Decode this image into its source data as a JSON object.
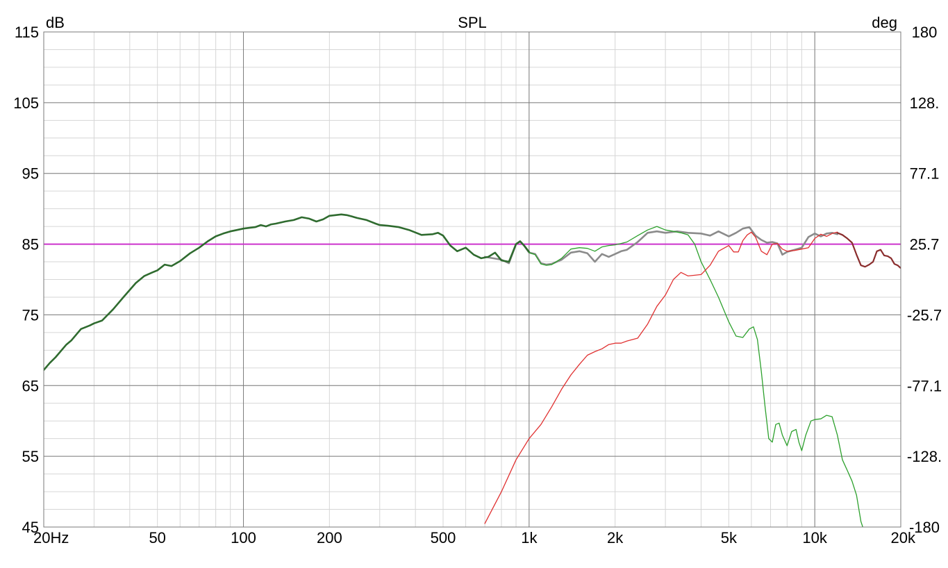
{
  "chart_data": {
    "type": "line",
    "title": "SPL",
    "ylabel_left": "dB",
    "ylabel_right": "deg",
    "x_scale": "log",
    "xlim": [
      20,
      20000
    ],
    "ylim": [
      45,
      115
    ],
    "y2lim": [
      -180,
      180
    ],
    "x_ticks": [
      {
        "v": 20,
        "label": "20Hz"
      },
      {
        "v": 50,
        "label": "50"
      },
      {
        "v": 100,
        "label": "100"
      },
      {
        "v": 200,
        "label": "200"
      },
      {
        "v": 500,
        "label": "500"
      },
      {
        "v": 1000,
        "label": "1k"
      },
      {
        "v": 2000,
        "label": "2k"
      },
      {
        "v": 5000,
        "label": "5k"
      },
      {
        "v": 10000,
        "label": "10k"
      },
      {
        "v": 20000,
        "label": "20k"
      }
    ],
    "y_ticks": [
      "115",
      "105",
      "95",
      "85",
      "75",
      "65",
      "55",
      "45"
    ],
    "y_tick_values": [
      115,
      105,
      95,
      85,
      75,
      65,
      55,
      45
    ],
    "y2_ticks": [
      "180",
      "128.",
      "77.1",
      "25.7",
      "-25.7",
      "-77.1",
      "-128.",
      "-180"
    ],
    "grid": true,
    "reference_line": {
      "y": 85,
      "color": "#cc33cc"
    },
    "series": [
      {
        "color": "#8b8b8b",
        "x": [
          700,
          800,
          850,
          900,
          930,
          960,
          1000,
          1050,
          1100,
          1150,
          1200,
          1300,
          1400,
          1500,
          1600,
          1700,
          1800,
          1900,
          2000,
          2100,
          2200,
          2400,
          2600,
          2800,
          3000,
          3300,
          3600,
          4000,
          4300,
          4600,
          5000,
          5300,
          5600,
          5900,
          6200,
          6500,
          6800,
          7100,
          7400,
          7700,
          8000,
          8500,
          9000,
          9500,
          10000,
          10500,
          11000,
          11500,
          12000
        ],
        "y": [
          83.2,
          82.8,
          82.3,
          85.0,
          85.4,
          84.8,
          83.8,
          83.6,
          82.3,
          82.1,
          82.2,
          82.8,
          83.8,
          84.0,
          83.7,
          82.5,
          83.6,
          83.2,
          83.6,
          84.0,
          84.2,
          85.3,
          86.6,
          86.8,
          86.6,
          86.8,
          86.6,
          86.5,
          86.2,
          86.8,
          86.1,
          86.6,
          87.2,
          87.4,
          86.2,
          85.6,
          85.2,
          85.3,
          85.1,
          83.5,
          83.9,
          84.2,
          84.5,
          86.0,
          86.5,
          86.1,
          86.5,
          86.6,
          86.4
        ]
      },
      {
        "color": "#2f6b2f",
        "x": [
          20,
          21,
          22,
          24,
          25,
          27,
          29,
          30,
          32,
          35,
          38,
          42,
          45,
          48,
          50,
          53,
          56,
          60,
          65,
          70,
          75,
          80,
          85,
          90,
          95,
          100,
          105,
          110,
          115,
          120,
          125,
          130,
          140,
          150,
          160,
          170,
          180,
          190,
          200,
          210,
          220,
          230,
          240,
          250,
          270,
          290,
          300,
          320,
          350,
          380,
          420,
          460,
          480,
          500,
          530,
          560,
          600,
          640,
          680,
          720,
          760,
          800,
          850,
          900,
          930,
          960,
          1000
        ],
        "y": [
          67.2,
          68.2,
          69.0,
          70.8,
          71.4,
          73.0,
          73.5,
          73.8,
          74.2,
          75.8,
          77.5,
          79.5,
          80.5,
          81.0,
          81.3,
          82.1,
          81.9,
          82.6,
          83.7,
          84.5,
          85.4,
          86.1,
          86.5,
          86.8,
          87.0,
          87.2,
          87.3,
          87.4,
          87.7,
          87.5,
          87.8,
          87.9,
          88.2,
          88.4,
          88.8,
          88.6,
          88.2,
          88.5,
          89.0,
          89.1,
          89.2,
          89.1,
          88.9,
          88.7,
          88.4,
          87.9,
          87.7,
          87.6,
          87.4,
          87.0,
          86.3,
          86.4,
          86.6,
          86.2,
          84.8,
          84.0,
          84.5,
          83.5,
          83.0,
          83.2,
          83.8,
          82.7,
          82.5,
          85.0,
          85.4,
          84.8,
          83.9
        ]
      },
      {
        "color": "#2ca02c",
        "x": [
          1000,
          1050,
          1100,
          1150,
          1200,
          1300,
          1400,
          1500,
          1600,
          1700,
          1800,
          1900,
          2000,
          2100,
          2200,
          2400,
          2600,
          2800,
          3000,
          3200,
          3400,
          3600,
          3800,
          4000,
          4300,
          4600,
          5000,
          5300,
          5600,
          5900,
          6100,
          6300,
          6500,
          6700,
          6900,
          7100,
          7300,
          7500,
          7700,
          8000,
          8300,
          8600,
          8800,
          9000,
          9300,
          9700,
          10000,
          10500,
          11000,
          11500,
          12000,
          12500,
          13000,
          13500,
          14000,
          14500,
          15000
        ],
        "y": [
          83.8,
          83.5,
          82.2,
          82.0,
          82.1,
          83.0,
          84.3,
          84.5,
          84.4,
          84.0,
          84.6,
          84.8,
          84.9,
          85.1,
          85.3,
          86.2,
          87.0,
          87.5,
          87.0,
          86.8,
          86.6,
          86.3,
          85.0,
          82.5,
          80.0,
          77.5,
          74.0,
          72.0,
          71.8,
          73.0,
          73.3,
          71.5,
          67.0,
          62.0,
          57.5,
          57.0,
          59.5,
          59.7,
          58.0,
          56.5,
          58.5,
          58.8,
          57.0,
          55.8,
          58.0,
          60.0,
          60.2,
          60.3,
          60.8,
          60.6,
          58.0,
          54.5,
          53.0,
          51.5,
          49.5,
          45.8,
          40.0
        ]
      },
      {
        "color": "#e03030",
        "x": [
          700,
          800,
          900,
          1000,
          1100,
          1200,
          1300,
          1400,
          1500,
          1600,
          1700,
          1800,
          1900,
          2000,
          2100,
          2200,
          2400,
          2600,
          2800,
          3000,
          3200,
          3400,
          3600,
          3800,
          4000,
          4300,
          4600,
          5000,
          5200,
          5400,
          5600,
          5800,
          6000,
          6200,
          6500,
          6800,
          7100,
          7400,
          7700,
          8000,
          8500,
          9000,
          9500,
          10000,
          10500,
          11000,
          11500,
          12000
        ],
        "y": [
          45.5,
          50.0,
          54.5,
          57.5,
          59.5,
          62.0,
          64.5,
          66.5,
          68.0,
          69.3,
          69.8,
          70.2,
          70.8,
          71.0,
          71.0,
          71.3,
          71.7,
          73.7,
          76.2,
          77.8,
          80.0,
          81.0,
          80.5,
          80.6,
          80.7,
          82.0,
          84.0,
          84.8,
          83.9,
          83.9,
          85.5,
          86.3,
          86.7,
          86.0,
          84.0,
          83.5,
          85.0,
          85.1,
          84.3,
          84.0,
          84.1,
          84.3,
          84.5,
          85.8,
          86.4,
          86.1,
          86.5,
          86.7
        ]
      },
      {
        "color": "#8a2d2d",
        "x": [
          12000,
          12500,
          13000,
          13500,
          14000,
          14500,
          15000,
          15500,
          16000,
          16500,
          17000,
          17500,
          18000,
          18500,
          19000,
          19500,
          20000
        ],
        "y": [
          86.6,
          86.3,
          85.8,
          85.2,
          83.5,
          82.0,
          81.8,
          82.1,
          82.5,
          84.0,
          84.2,
          83.4,
          83.3,
          83.0,
          82.2,
          82.0,
          81.6
        ]
      }
    ]
  }
}
